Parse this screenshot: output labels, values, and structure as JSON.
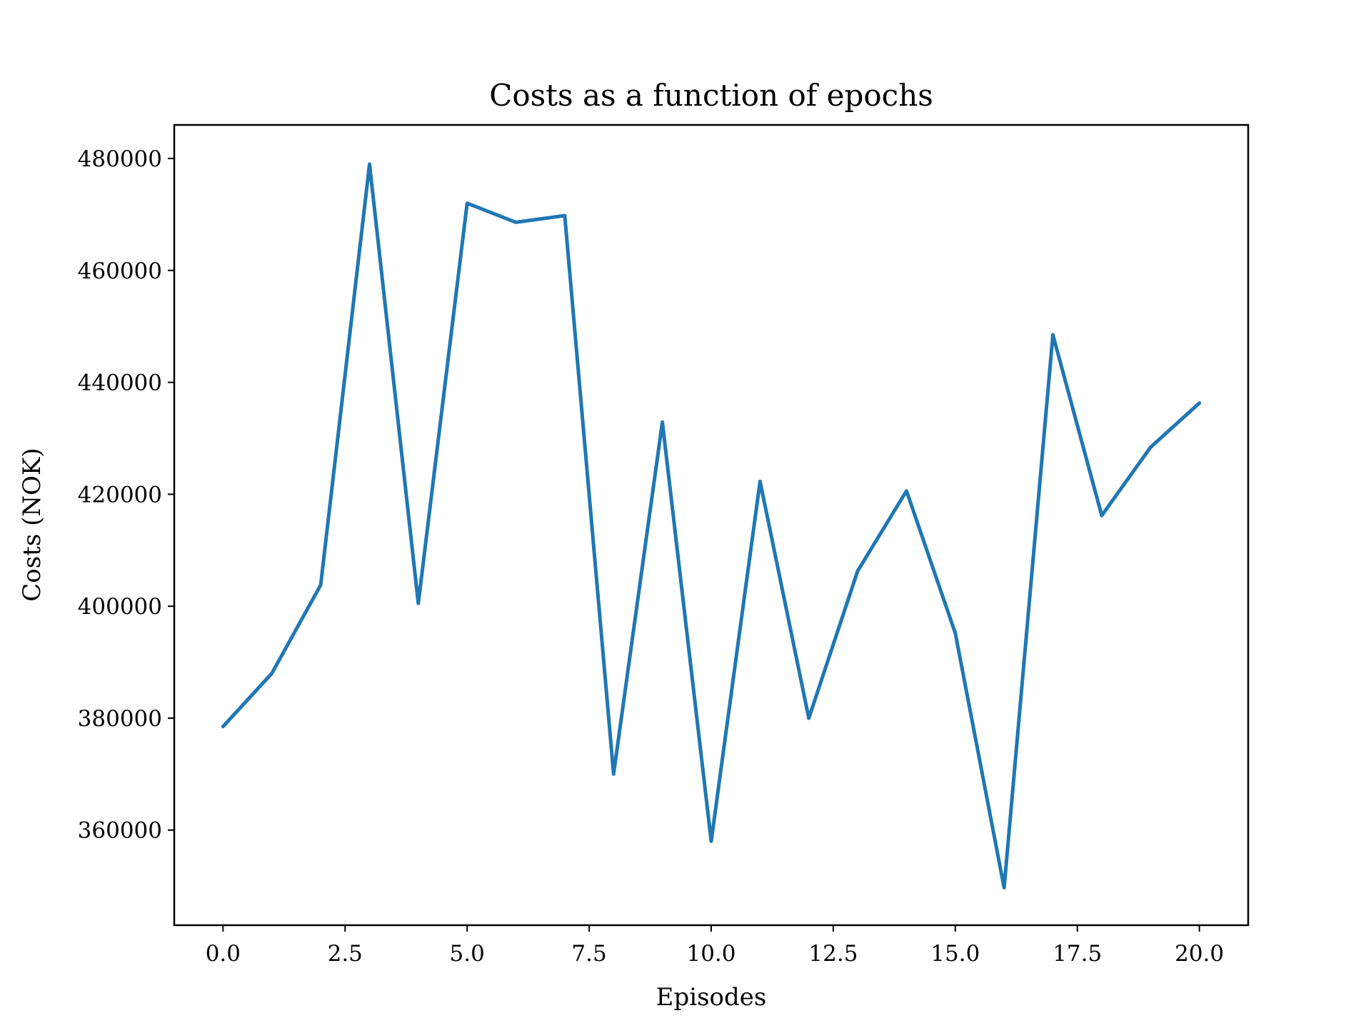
{
  "chart_data": {
    "type": "line",
    "title": "Costs as a function of epochs",
    "xlabel": "Episodes",
    "ylabel": "Costs (NOK)",
    "xlim": [
      -1,
      21
    ],
    "ylim": [
      343000,
      486000
    ],
    "xticks": [
      0.0,
      2.5,
      5.0,
      7.5,
      10.0,
      12.5,
      15.0,
      17.5,
      20.0
    ],
    "xtick_labels": [
      "0.0",
      "2.5",
      "5.0",
      "7.5",
      "10.0",
      "12.5",
      "15.0",
      "17.5",
      "20.0"
    ],
    "yticks": [
      360000,
      380000,
      400000,
      420000,
      440000,
      460000,
      480000
    ],
    "ytick_labels": [
      "360000",
      "380000",
      "400000",
      "420000",
      "440000",
      "460000",
      "480000"
    ],
    "grid": false,
    "series": [
      {
        "color": "#1f77b4",
        "x": [
          0,
          1,
          2,
          3,
          4,
          5,
          6,
          7,
          8,
          9,
          10,
          11,
          12,
          13,
          14,
          15,
          16,
          17,
          18,
          19,
          20
        ],
        "values": [
          378500,
          388000,
          403800,
          479000,
          400500,
          472000,
          468600,
          469800,
          370000,
          432900,
          358000,
          422300,
          380000,
          406300,
          420600,
          395200,
          349700,
          448500,
          416200,
          428400,
          436300
        ]
      }
    ]
  }
}
